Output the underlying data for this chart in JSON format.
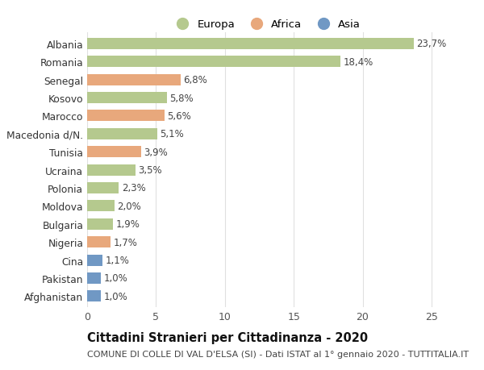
{
  "countries": [
    "Albania",
    "Romania",
    "Senegal",
    "Kosovo",
    "Marocco",
    "Macedonia d/N.",
    "Tunisia",
    "Ucraina",
    "Polonia",
    "Moldova",
    "Bulgaria",
    "Nigeria",
    "Cina",
    "Pakistan",
    "Afghanistan"
  ],
  "values": [
    23.7,
    18.4,
    6.8,
    5.8,
    5.6,
    5.1,
    3.9,
    3.5,
    2.3,
    2.0,
    1.9,
    1.7,
    1.1,
    1.0,
    1.0
  ],
  "labels": [
    "23,7%",
    "18,4%",
    "6,8%",
    "5,8%",
    "5,6%",
    "5,1%",
    "3,9%",
    "3,5%",
    "2,3%",
    "2,0%",
    "1,9%",
    "1,7%",
    "1,1%",
    "1,0%",
    "1,0%"
  ],
  "continent": [
    "Europa",
    "Europa",
    "Africa",
    "Europa",
    "Africa",
    "Europa",
    "Africa",
    "Europa",
    "Europa",
    "Europa",
    "Europa",
    "Africa",
    "Asia",
    "Asia",
    "Asia"
  ],
  "color_europa": "#b5c98e",
  "color_africa": "#e8a87c",
  "color_asia": "#7098c4",
  "title": "Cittadini Stranieri per Cittadinanza - 2020",
  "subtitle": "COMUNE DI COLLE DI VAL D'ELSA (SI) - Dati ISTAT al 1° gennaio 2020 - TUTTITALIA.IT",
  "xlim": [
    0,
    26
  ],
  "xticks": [
    0,
    5,
    10,
    15,
    20,
    25
  ],
  "background_color": "#ffffff",
  "grid_color": "#e0e0e0",
  "bar_height": 0.62,
  "label_fontsize": 8.5,
  "ytick_fontsize": 8.8,
  "xtick_fontsize": 9,
  "title_fontsize": 10.5,
  "subtitle_fontsize": 8.0,
  "legend_fontsize": 9.5
}
